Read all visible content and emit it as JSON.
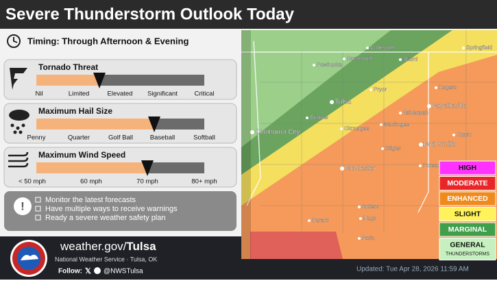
{
  "header": {
    "title": "Severe Thunderstorm Outlook Today"
  },
  "timing": "Timing: Through Afternoon & Evening",
  "threats": [
    {
      "title": "Tornado Threat",
      "scale": [
        "Nil",
        "Limited",
        "Elevated",
        "Significant",
        "Critical"
      ]
    },
    {
      "title": "Maximum Hail Size",
      "scale": [
        "Penny",
        "Quarter",
        "Golf Ball",
        "Baseball",
        "Softball"
      ]
    },
    {
      "title": "Maximum Wind Speed",
      "scale": [
        "< 50 mph",
        "60 mph",
        "70 mph",
        "80+ mph"
      ]
    }
  ],
  "tips": [
    "Monitor the latest forecasts",
    "Have multiple ways to receive warnings",
    "Ready a severe weather safety plan"
  ],
  "map": {
    "cities": [
      "Coffeyville",
      "Springfield",
      "Pawhuska",
      "Bartlesville",
      "Miami",
      "Pryor",
      "Rogers",
      "Tulsa",
      "Fayetteville",
      "Bristow",
      "Tahlequah",
      "Okmulgee",
      "Muskogee",
      "Oklahoma City",
      "Ozark",
      "Stigler",
      "Fort Smith",
      "McAlester",
      "Poteau",
      "Antlers",
      "Hugo",
      "Durant",
      "Paris"
    ]
  },
  "legend": [
    {
      "label": "HIGH",
      "color": "#ff33ff"
    },
    {
      "label": "MODERATE",
      "color": "#e8262a"
    },
    {
      "label": "ENHANCED",
      "color": "#f08a1c"
    },
    {
      "label": "SLIGHT",
      "color": "#fff25a"
    },
    {
      "label": "MARGINAL",
      "color": "#3f9f4a"
    },
    {
      "label": "GENERAL",
      "sublabel": "THUNDERSTORMS",
      "color": "#c6f0c0"
    }
  ],
  "footer": {
    "website_prefix": "weather.gov/",
    "website_office": "Tulsa",
    "office": "National Weather Service · Tulsa, OK",
    "follow": "Follow:",
    "handle": "@NWSTulsa",
    "updated": "Updated: Tue Apr 28, 2026 11:59 AM"
  }
}
